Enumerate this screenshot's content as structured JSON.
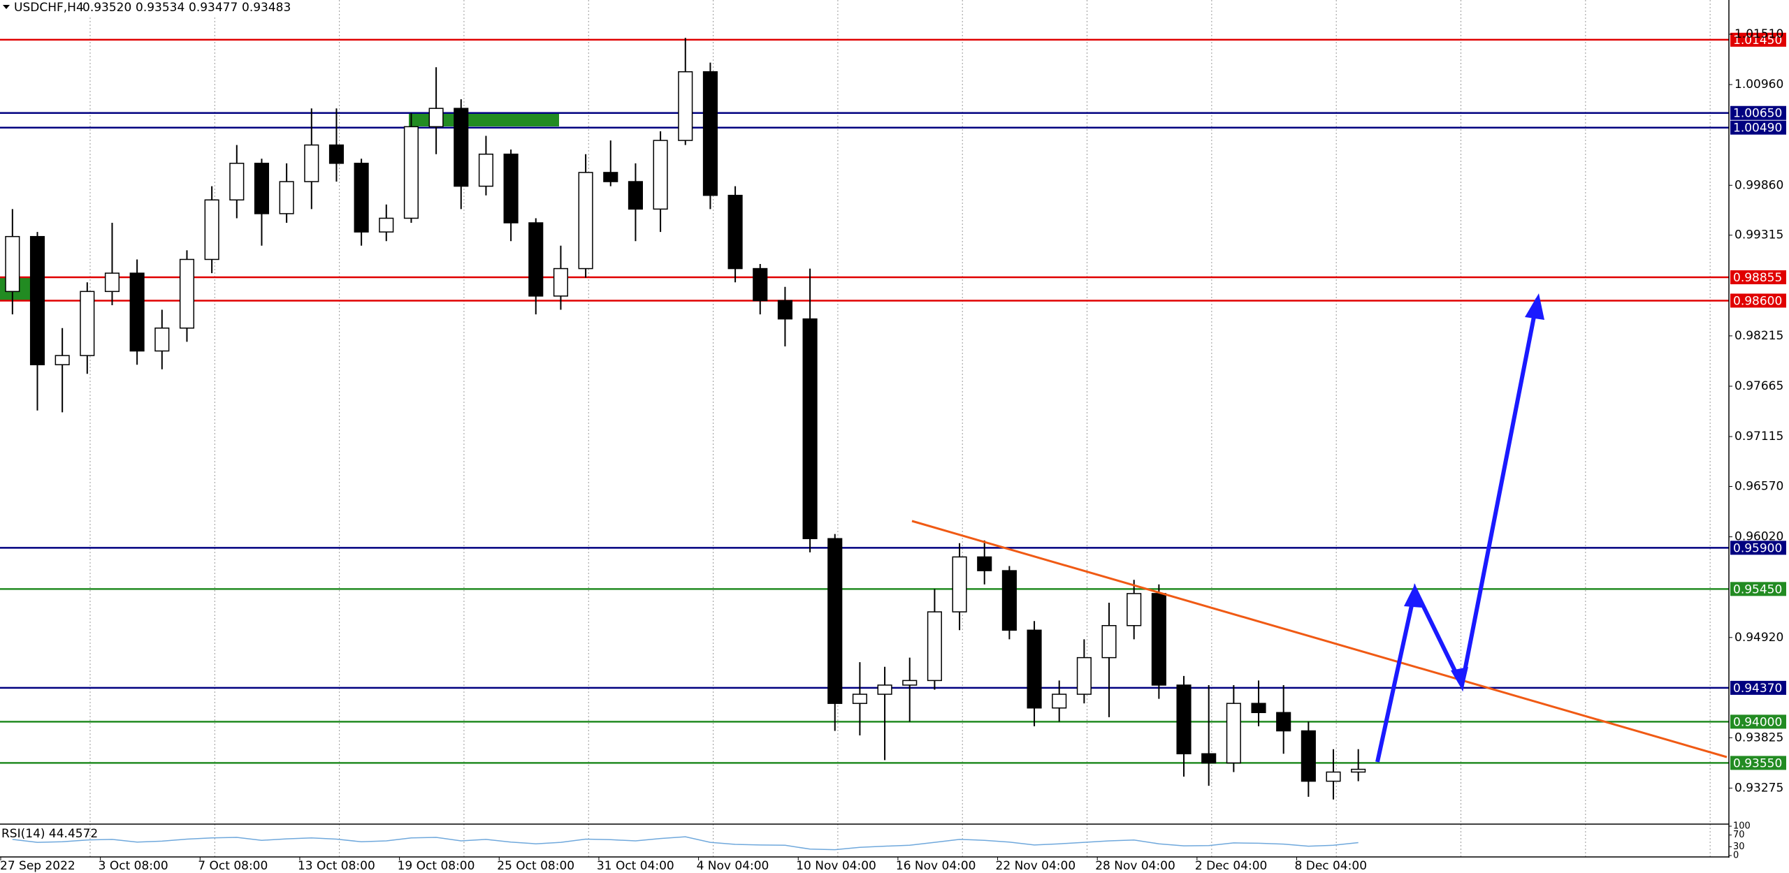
{
  "chart_data": {
    "type": "candlestick",
    "title": "USDCHF,H4",
    "quote": [
      {
        "value": 0.9352,
        "label": "0.93520"
      },
      {
        "value": 0.93534,
        "label": "0.93534"
      },
      {
        "value": 0.93477,
        "label": "0.93477"
      },
      {
        "value": 0.93483,
        "label": "0.93483"
      }
    ],
    "ylim": [
      0.92889,
      1.01884
    ],
    "yticks": [
      {
        "value": 1.0151,
        "label": "1.01510"
      },
      {
        "value": 1.0096,
        "label": "1.00960"
      },
      {
        "value": 0.9986,
        "label": "0.99860"
      },
      0.99315,
      0.98215,
      0.97665,
      0.97115,
      {
        "value": 0.9657,
        "label": "0.96570"
      },
      {
        "value": 0.9602,
        "label": "0.96020"
      },
      {
        "value": 0.9492,
        "label": "0.94920"
      },
      0.93825,
      0.93275
    ],
    "xtick_labels": [
      "27 Sep 2022",
      "3 Oct 08:00",
      "7 Oct 08:00",
      "13 Oct 08:00",
      "19 Oct 08:00",
      "25 Oct 08:00",
      "31 Oct 04:00",
      "4 Nov 04:00",
      "10 Nov 04:00",
      "16 Nov 04:00",
      "22 Nov 04:00",
      "28 Nov 04:00",
      "2 Dec 04:00",
      "8 Dec 04:00"
    ],
    "open": [
      0.987,
      0.993,
      0.979,
      0.98,
      0.987,
      0.989,
      0.9805,
      0.983,
      0.9905,
      0.997,
      1.001,
      0.9955,
      0.999,
      1.003,
      1.001,
      0.9935,
      0.995,
      1.005,
      1.007,
      0.9985,
      1.002,
      0.9945,
      0.9865,
      0.9895,
      1.0,
      0.999,
      0.996,
      1.0035,
      1.011,
      0.9975,
      0.9895,
      0.986,
      0.984,
      0.96,
      0.942,
      0.943,
      0.944,
      0.9445,
      0.952,
      0.958,
      0.9565,
      0.95,
      0.9415,
      0.943,
      0.947,
      0.9505,
      0.954,
      0.944,
      0.9365,
      0.9355,
      0.942,
      0.941,
      0.939,
      0.9335,
      0.9345
    ],
    "high": [
      0.996,
      0.9935,
      0.983,
      0.988,
      0.9945,
      0.9905,
      0.985,
      0.9915,
      0.9985,
      1.003,
      1.0015,
      1.001,
      1.007,
      1.007,
      1.0015,
      0.9965,
      1.0065,
      1.0115,
      1.008,
      1.004,
      1.0025,
      0.995,
      0.992,
      1.002,
      1.0035,
      1.001,
      1.0045,
      1.0147,
      1.012,
      0.9985,
      0.99,
      0.9875,
      0.9895,
      0.9605,
      0.9465,
      0.946,
      0.947,
      0.9545,
      0.9595,
      0.9598,
      0.957,
      0.951,
      0.9445,
      0.949,
      0.953,
      0.9555,
      0.955,
      0.945,
      0.944,
      0.944,
      0.9445,
      0.944,
      0.94,
      0.937,
      0.937
    ],
    "low": [
      0.9845,
      0.974,
      0.9738,
      0.978,
      0.9855,
      0.979,
      0.9785,
      0.9815,
      0.989,
      0.995,
      0.992,
      0.9945,
      0.996,
      0.999,
      0.992,
      0.9925,
      0.9945,
      1.002,
      0.996,
      0.9975,
      0.9925,
      0.9845,
      0.985,
      0.9885,
      0.9985,
      0.9925,
      0.9935,
      1.003,
      0.996,
      0.988,
      0.9845,
      0.981,
      0.9585,
      0.939,
      0.9385,
      0.9358,
      0.94,
      0.9435,
      0.95,
      0.955,
      0.949,
      0.9395,
      0.94,
      0.942,
      0.9405,
      0.949,
      0.9425,
      0.934,
      0.933,
      0.9345,
      0.9395,
      0.9365,
      0.9318,
      0.9315,
      0.9335
    ],
    "close": [
      0.993,
      0.979,
      0.98,
      0.987,
      0.989,
      0.9805,
      0.983,
      0.9905,
      0.997,
      1.001,
      0.9955,
      0.999,
      1.003,
      1.001,
      0.9935,
      0.995,
      1.005,
      1.007,
      0.9985,
      1.002,
      0.9945,
      0.9865,
      0.9895,
      1.0,
      0.999,
      0.996,
      1.0035,
      1.011,
      0.9975,
      0.9895,
      0.986,
      0.984,
      0.96,
      0.942,
      0.943,
      0.944,
      0.9445,
      0.952,
      0.958,
      0.9565,
      0.95,
      0.9415,
      0.943,
      0.947,
      0.9505,
      0.954,
      0.944,
      0.9365,
      0.9355,
      0.942,
      0.941,
      0.939,
      0.9335,
      0.9345,
      0.9348
    ],
    "levels": [
      {
        "value": 1.0145,
        "label": "1.01450",
        "color": "#e00000"
      },
      {
        "value": 1.0065,
        "label": "1.00650",
        "color": "#000080"
      },
      {
        "value": 1.0049,
        "label": "1.00490",
        "color": "#000080"
      },
      {
        "value": 0.98855,
        "label": "0.98855",
        "color": "#e00000"
      },
      {
        "value": 0.986,
        "label": "0.98600",
        "color": "#e00000"
      },
      {
        "value": 0.959,
        "label": "0.95900",
        "color": "#000080"
      },
      {
        "value": 0.9545,
        "label": "0.95450",
        "color": "#228b22"
      },
      {
        "value": 0.9437,
        "label": "0.94370",
        "color": "#000080"
      },
      {
        "value": 0.94,
        "label": "0.94000",
        "color": "#228b22"
      },
      {
        "value": 0.9355,
        "label": "0.93550",
        "color": "#228b22"
      }
    ],
    "rsi": {
      "label": "RSI(14) 44.4572",
      "ylim": [
        0,
        100
      ],
      "yticks": [
        100,
        70,
        30,
        0
      ],
      "color": "#6fa8dc",
      "values": [
        55,
        45,
        47,
        53,
        55,
        46,
        49,
        56,
        60,
        62,
        52,
        57,
        60,
        56,
        47,
        50,
        60,
        62,
        50,
        55,
        46,
        40,
        45,
        56,
        54,
        50,
        58,
        64,
        45,
        38,
        36,
        35,
        22,
        20,
        28,
        32,
        35,
        45,
        55,
        52,
        46,
        36,
        40,
        45,
        50,
        53,
        40,
        33,
        34,
        43,
        42,
        39,
        32,
        35,
        44
      ]
    }
  }
}
